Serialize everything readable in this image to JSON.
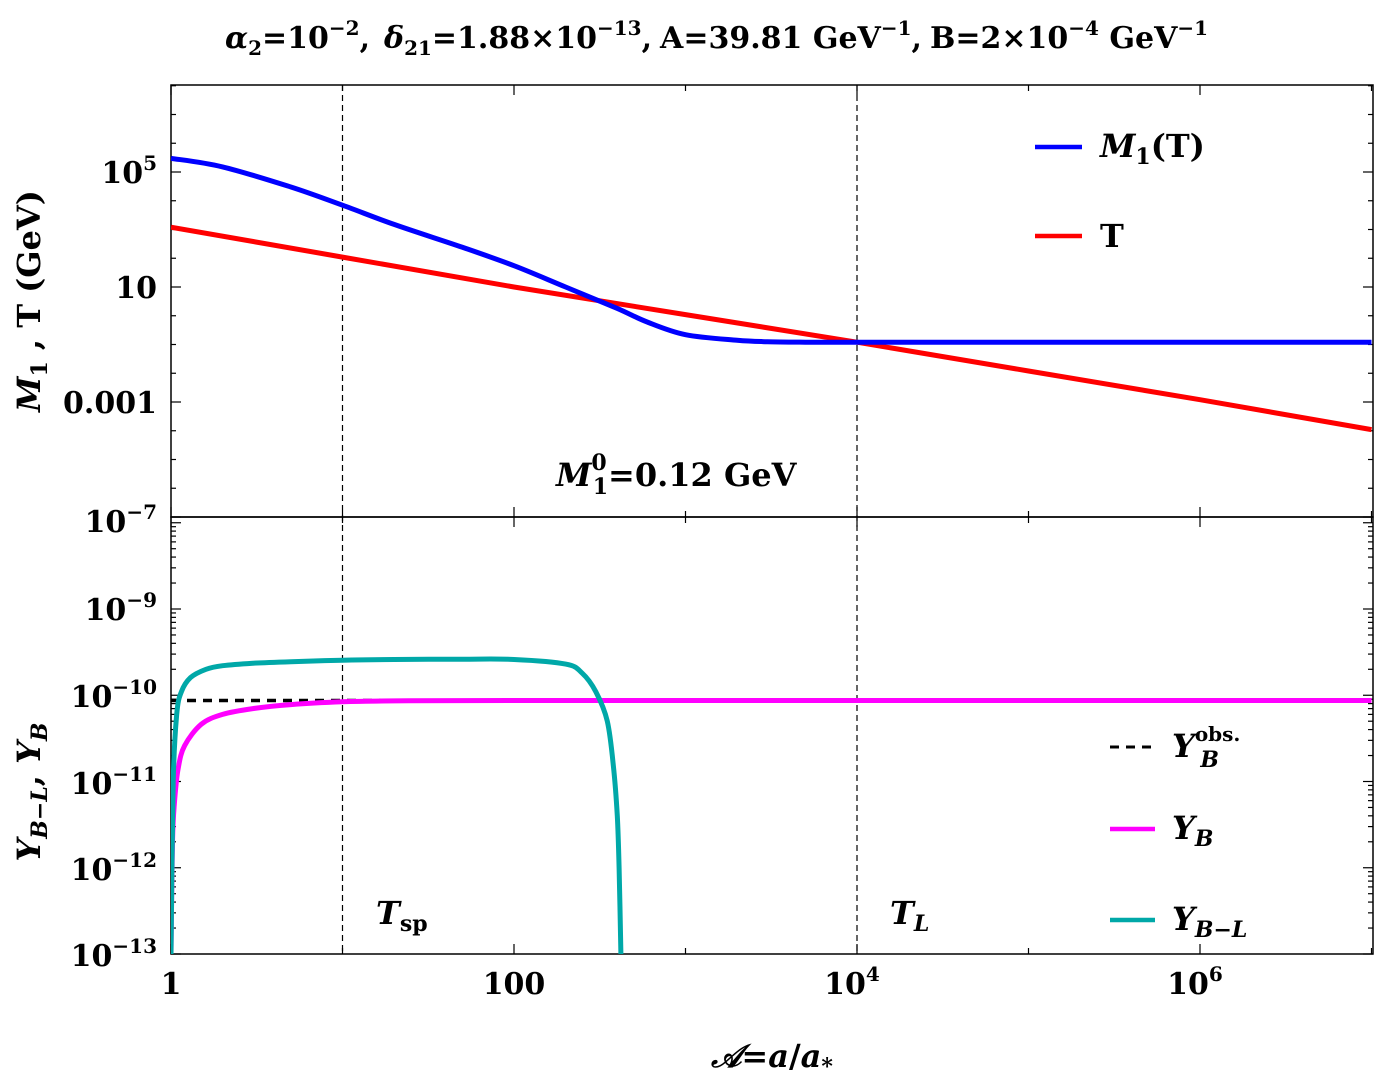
{
  "title": {
    "alpha_sym": "α",
    "alpha_sub": "2",
    "alpha_eq": "=10",
    "alpha_exp": "−2",
    "sep1": ",",
    "delta_sym": "δ",
    "delta_sub": "21",
    "delta_eq": "=1.88×10",
    "delta_exp": "−13",
    "sep2": ",",
    "A_text": "A=39.81 GeV",
    "A_exp": "−1",
    "sep3": ",",
    "B_text": "B=2×10",
    "B_exp": "−4",
    "B_unit": " GeV",
    "B_unit_exp": "−1"
  },
  "xaxis": {
    "label_script": "𝒜",
    "label_eq": "=",
    "label_a": "a",
    "label_slash": "/",
    "label_astar": "a",
    "label_star": "*",
    "ticks": [
      {
        "base": "1",
        "exp": ""
      },
      {
        "base": "100",
        "exp": ""
      },
      {
        "base": "10",
        "exp": "4"
      },
      {
        "base": "10",
        "exp": "6"
      }
    ]
  },
  "top_panel": {
    "ylabel_M": "M",
    "ylabel_sub": "1",
    "ylabel_rest": " , T (GeV)",
    "ticks": [
      {
        "base": "10",
        "exp": "5"
      },
      {
        "base": "10",
        "exp": ""
      },
      {
        "base": "0.001",
        "exp": ""
      },
      {
        "base": "10",
        "exp": "−7"
      }
    ],
    "legend": {
      "M1_M": "M",
      "M1_sub": "1",
      "M1_rest": "(T)",
      "T": "T"
    },
    "annotation": {
      "M": "M",
      "sup": "0",
      "sub": "1",
      "rest": "=0.12 GeV"
    },
    "colors": {
      "M1": "#0000ff",
      "T": "#ff0000"
    }
  },
  "bottom_panel": {
    "ylabel_Y1": "Y",
    "ylabel_sub1": "B−L",
    "ylabel_comma": ", ",
    "ylabel_Y2": "Y",
    "ylabel_sub2": "B",
    "ticks": [
      {
        "base": "10",
        "exp": "−9"
      },
      {
        "base": "10",
        "exp": "−10"
      },
      {
        "base": "10",
        "exp": "−11"
      },
      {
        "base": "10",
        "exp": "−12"
      },
      {
        "base": "10",
        "exp": "−13"
      }
    ],
    "legend": {
      "obs_Y": "Y",
      "obs_sup": "obs.",
      "obs_sub": "B",
      "YB_Y": "Y",
      "YB_sub": "B",
      "YBL_Y": "Y",
      "YBL_sub": "B−L"
    },
    "annotations": {
      "Tsp_T": "T",
      "Tsp_sub": "sp",
      "TL_T": "T",
      "TL_sub": "L"
    },
    "colors": {
      "YB": "#ff00ff",
      "YBL": "#00a8a8",
      "obs": "#000000"
    }
  },
  "chart_data": [
    {
      "type": "line",
      "panel": "top",
      "xscale": "log",
      "yscale": "log",
      "xlim": [
        1,
        10000000
      ],
      "ylim": [
        1e-07,
        100000000.0
      ],
      "vlines": [
        10,
        10000
      ],
      "series": [
        {
          "name": "M1(T)",
          "color": "#0000ff",
          "x": [
            1,
            2,
            5,
            10,
            20,
            50,
            100,
            200,
            400,
            600,
            1000,
            2000,
            3000,
            5000,
            7000,
            10000,
            100000,
            1000000,
            10000000
          ],
          "y": [
            300000,
            150000,
            30000,
            7000,
            1500,
            240,
            55,
            10,
            1.8,
            0.6,
            0.22,
            0.14,
            0.125,
            0.12,
            0.12,
            0.12,
            0.12,
            0.12,
            0.12
          ]
        },
        {
          "name": "T",
          "color": "#ff0000",
          "x": [
            1,
            10,
            100,
            1000,
            10000,
            100000,
            1000000,
            10000000
          ],
          "y": [
            1200,
            110,
            10,
            1.1,
            0.12,
            0.012,
            0.0012,
            0.00011
          ]
        }
      ]
    },
    {
      "type": "line",
      "panel": "bottom",
      "xscale": "log",
      "yscale": "log",
      "xlim": [
        1,
        10000000
      ],
      "ylim": [
        1e-13,
        1e-08
      ],
      "vlines": [
        10,
        10000
      ],
      "series": [
        {
          "name": "Y_B^obs.",
          "color": "#000000",
          "dashed": true,
          "x": [
            1,
            10000000
          ],
          "y": [
            8.7e-11,
            8.7e-11
          ]
        },
        {
          "name": "Y_B",
          "color": "#ff00ff",
          "x": [
            1,
            1.02,
            1.05,
            1.1,
            1.2,
            1.5,
            2,
            3,
            5,
            10,
            20,
            100,
            10000,
            10000000
          ],
          "y": [
            1e-13,
            2e-12,
            6e-12,
            1.4e-11,
            2.6e-11,
            4.6e-11,
            6e-11,
            7e-11,
            7.8e-11,
            8.4e-11,
            8.6e-11,
            8.7e-11,
            8.7e-11,
            8.7e-11
          ]
        },
        {
          "name": "Y_B-L",
          "color": "#00a8a8",
          "x": [
            1,
            1.03,
            1.08,
            1.15,
            1.3,
            1.6,
            2,
            3,
            5,
            10,
            20,
            50,
            100,
            200,
            250,
            300,
            350,
            380,
            400,
            410,
            420
          ],
          "y": [
            1e-13,
            1e-11,
            6e-11,
            1.1e-10,
            1.6e-10,
            2e-10,
            2.2e-10,
            2.35e-10,
            2.45e-10,
            2.55e-10,
            2.6e-10,
            2.62e-10,
            2.6e-10,
            2.3e-10,
            1.8e-10,
            1.1e-10,
            5e-11,
            1.5e-11,
            4e-12,
            1e-12,
            1e-13
          ]
        }
      ]
    }
  ]
}
